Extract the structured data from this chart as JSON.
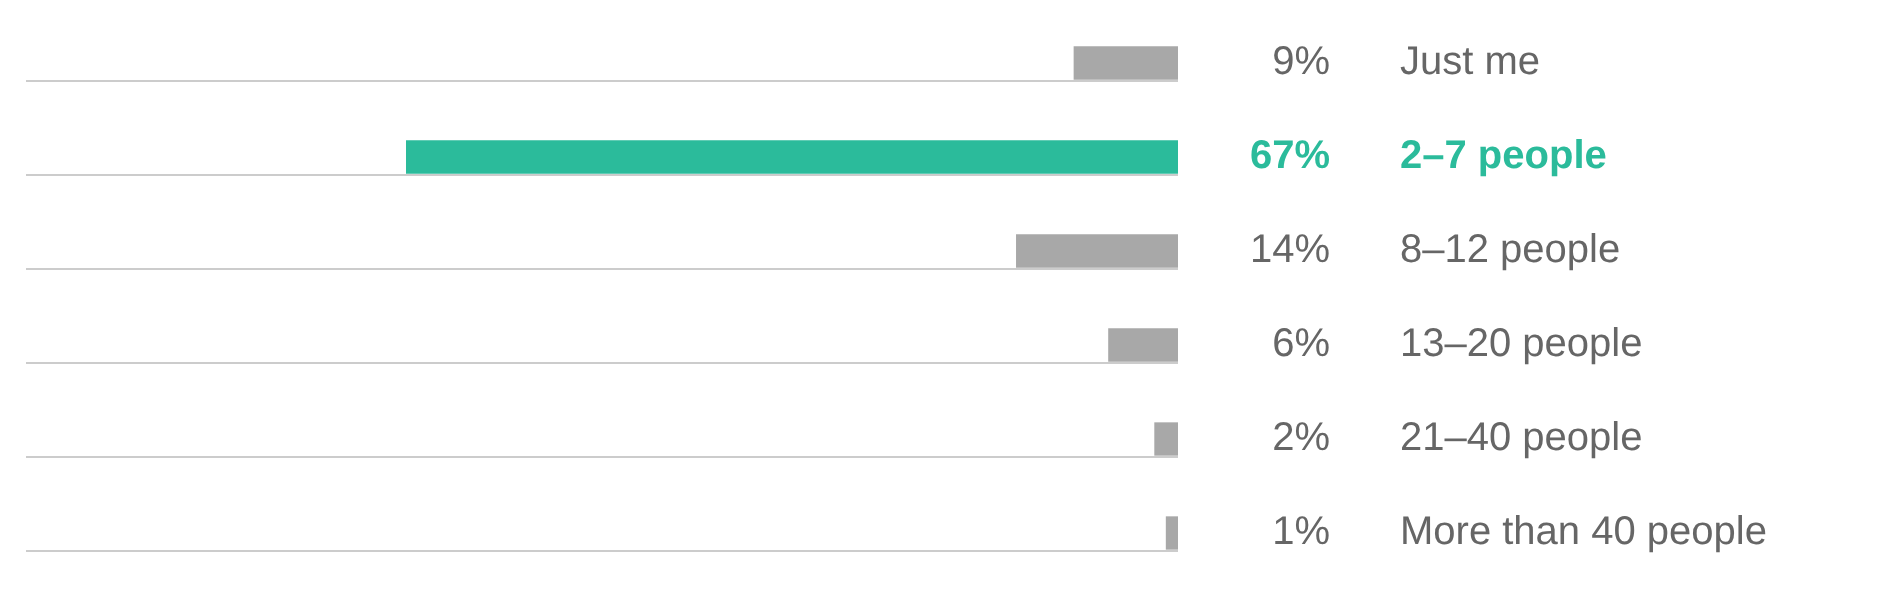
{
  "chart_data": {
    "type": "bar",
    "orientation": "horizontal",
    "categories": [
      "Just me",
      "2–7 people",
      "8–12 people",
      "13–20 people",
      "21–40 people",
      "More than 40 people"
    ],
    "values": [
      9,
      67,
      14,
      6,
      2,
      1
    ],
    "value_labels": [
      "9%",
      "67%",
      "14%",
      "6%",
      "2%",
      "1%"
    ],
    "colors": [
      "#a8a8a8",
      "#2bbb9b",
      "#a8a8a8",
      "#a8a8a8",
      "#a8a8a8",
      "#a8a8a8"
    ],
    "tick_labels": "y",
    "grid": "y",
    "legend": false
  }
}
